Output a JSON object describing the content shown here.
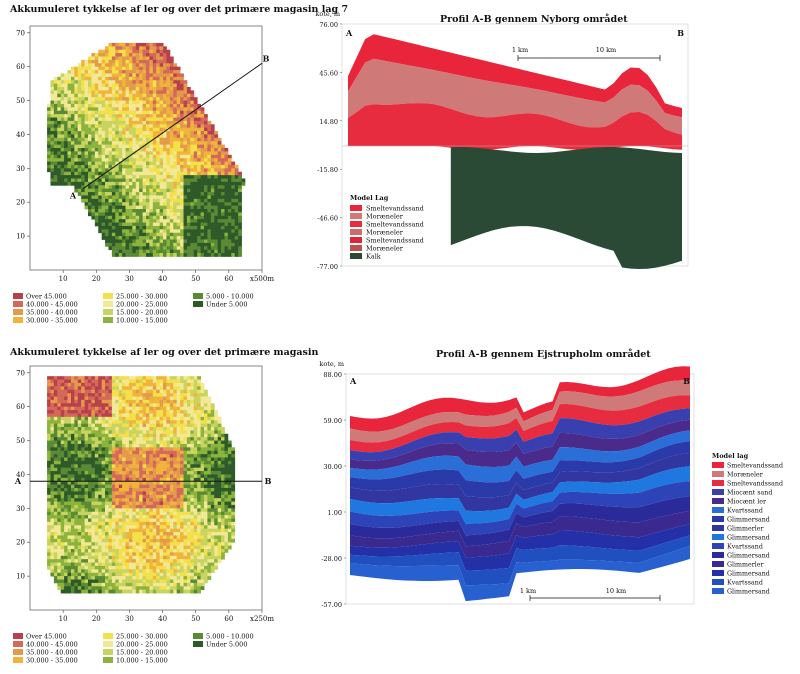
{
  "chart_data": [
    {
      "type": "heatmap",
      "title": "Akkumuleret tykkelse af ler og over det primære magasin lag 7",
      "x_ticks": [
        "10",
        "20",
        "30",
        "40",
        "50",
        "60",
        "x500m"
      ],
      "y_ticks": [
        "10",
        "20",
        "30",
        "40",
        "50",
        "60",
        "70"
      ],
      "xlim": [
        0,
        70
      ],
      "ylim": [
        0,
        72
      ],
      "section_labels": [
        "A",
        "B"
      ],
      "section_line": [
        [
          16,
          24
        ],
        [
          70,
          61
        ]
      ],
      "legend": [
        {
          "label": "Over 45.000",
          "color": "#b8404a"
        },
        {
          "label": "40.000 - 45.000",
          "color": "#d4685a"
        },
        {
          "label": "35.000 - 40.000",
          "color": "#e39a4a"
        },
        {
          "label": "30.000 - 35.000",
          "color": "#f0b43c"
        },
        {
          "label": "25.000 - 30.000",
          "color": "#f4e04a"
        },
        {
          "label": "20.000 - 25.000",
          "color": "#f2e896"
        },
        {
          "label": "15.000 - 20.000",
          "color": "#c8d460"
        },
        {
          "label": "10.000 - 15.000",
          "color": "#8cb43c"
        },
        {
          "label": "5.000 - 10.000",
          "color": "#5a8a34"
        },
        {
          "label": "Under 5.000",
          "color": "#2e5a2a"
        }
      ]
    },
    {
      "type": "area",
      "title": "Profil A-B gennem Nyborg området",
      "ylabel": "kote, m",
      "y_ticks": [
        "76.00",
        "45.60",
        "14.80",
        "-15.80",
        "-46.60",
        "-77.00"
      ],
      "ylim": [
        -77,
        76
      ],
      "end_labels": [
        "A",
        "B"
      ],
      "scale_labels": [
        "1 km",
        "10 km"
      ],
      "legend_title": "Model Lag",
      "legend": [
        {
          "label": "Smeltevandssand",
          "color": "#e8253a"
        },
        {
          "label": "Moræneler",
          "color": "#cf7a78"
        },
        {
          "label": "Smeltevandssand",
          "color": "#e62c3e"
        },
        {
          "label": "Moræneler",
          "color": "#c96e6e"
        },
        {
          "label": "Smeltevandssand",
          "color": "#e0243a"
        },
        {
          "label": "Moræneler",
          "color": "#c0504e"
        },
        {
          "label": "Kalk",
          "color": "#2b4a36"
        }
      ]
    },
    {
      "type": "heatmap",
      "title": "Akkumuleret tykkelse af ler og over det primære magasin",
      "x_ticks": [
        "10",
        "20",
        "30",
        "40",
        "50",
        "60",
        "x250m"
      ],
      "y_ticks": [
        "10",
        "20",
        "30",
        "40",
        "50",
        "60",
        "70"
      ],
      "xlim": [
        0,
        70
      ],
      "ylim": [
        0,
        72
      ],
      "section_labels": [
        "A",
        "B"
      ],
      "section_line": [
        [
          0,
          38
        ],
        [
          70,
          38
        ]
      ],
      "legend": [
        {
          "label": "Over 45.000",
          "color": "#b8404a"
        },
        {
          "label": "40.000 - 45.000",
          "color": "#d4685a"
        },
        {
          "label": "35.000 - 40.000",
          "color": "#e39a4a"
        },
        {
          "label": "30.000 - 35.000",
          "color": "#f0b43c"
        },
        {
          "label": "25.000 - 30.000",
          "color": "#f4e04a"
        },
        {
          "label": "20.000 - 25.000",
          "color": "#f2e896"
        },
        {
          "label": "15.000 - 20.000",
          "color": "#c8d460"
        },
        {
          "label": "10.000 - 15.000",
          "color": "#8cb43c"
        },
        {
          "label": "5.000 - 10.000",
          "color": "#5a8a34"
        },
        {
          "label": "Under 5.000",
          "color": "#2e5a2a"
        }
      ]
    },
    {
      "type": "area",
      "title": "Profil A-B gennem Ejstrupholm området",
      "ylabel": "kote, m",
      "y_ticks": [
        "88.00",
        "59.00",
        "30.00",
        "1.00",
        "-28.00",
        "-57.00"
      ],
      "ylim": [
        -57,
        88
      ],
      "end_labels": [
        "A",
        "B"
      ],
      "scale_labels": [
        "1 km",
        "10 km"
      ],
      "legend_title": "Model lag",
      "legend": [
        {
          "label": "Smeltevandssand",
          "color": "#e8253a"
        },
        {
          "label": "Moræneler",
          "color": "#cf7a78"
        },
        {
          "label": "Smeltevandssand",
          "color": "#e62c3e"
        },
        {
          "label": "Miocænt sand",
          "color": "#3a3fb0"
        },
        {
          "label": "Miocænt ler",
          "color": "#4a2a8a"
        },
        {
          "label": "Kvartssand",
          "color": "#2a6ed8"
        },
        {
          "label": "Glimmersand",
          "color": "#2a3aa8"
        },
        {
          "label": "Glimmerler",
          "color": "#3236a0"
        },
        {
          "label": "Glimmersand",
          "color": "#1e78e0"
        },
        {
          "label": "Kvartssand",
          "color": "#2c44b8"
        },
        {
          "label": "Glimmersand",
          "color": "#2a2a9a"
        },
        {
          "label": "Glimmerler",
          "color": "#3a2a90"
        },
        {
          "label": "Glimmersand",
          "color": "#2430a8"
        },
        {
          "label": "Kvartssand",
          "color": "#2050c0"
        },
        {
          "label": "Glimmersand",
          "color": "#2860d0"
        }
      ]
    }
  ]
}
